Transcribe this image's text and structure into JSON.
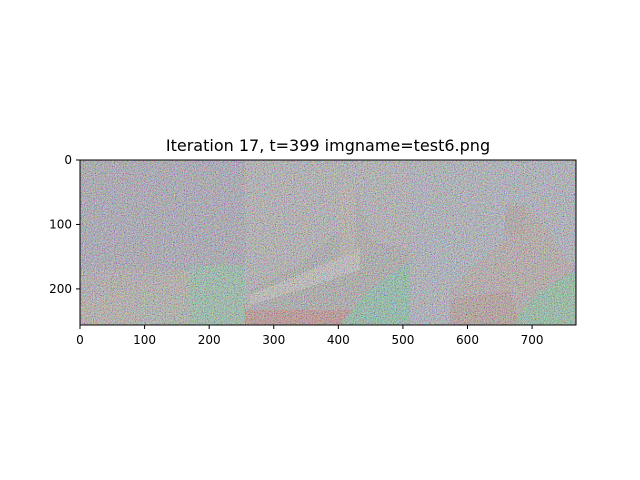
{
  "chart_data": {
    "type": "image",
    "title": "Iteration 17, t=399 imgname=test6.png",
    "xlim": [
      0,
      768
    ],
    "ylim": [
      256,
      0
    ],
    "x_ticks": [
      0,
      100,
      200,
      300,
      400,
      500,
      600,
      700
    ],
    "y_ticks": [
      0,
      100,
      200
    ],
    "panels": [
      {
        "x_start": 0,
        "x_end": 256,
        "dominant_colors": [
          "#8f7fa5",
          "#b4a08c",
          "#5fbf8c"
        ]
      },
      {
        "x_start": 256,
        "x_end": 512,
        "dominant_colors": [
          "#9a9aa6",
          "#b0a89a",
          "#c0504a",
          "#40c090"
        ]
      },
      {
        "x_start": 512,
        "x_end": 768,
        "dominant_colors": [
          "#9aa0b4",
          "#b48c82",
          "#50c080"
        ]
      }
    ],
    "grid": false,
    "legend": "none"
  }
}
